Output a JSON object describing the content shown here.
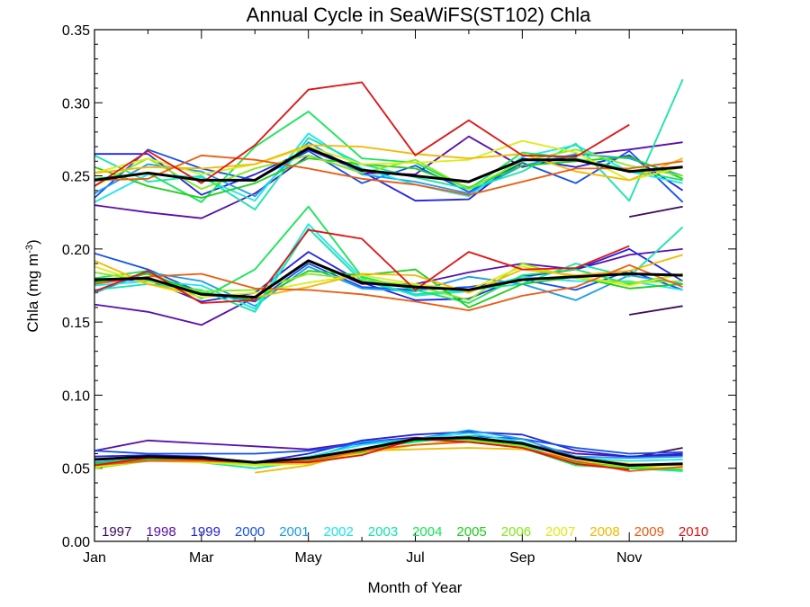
{
  "chart_data": {
    "type": "line",
    "title": "Annual Cycle in SeaWiFS(ST102) Chla",
    "xlabel": "Month of Year",
    "ylabel": {
      "main": "Chla (mg m",
      "sup": "-3",
      "end": ")"
    },
    "xlim": [
      1,
      13
    ],
    "ylim": [
      0,
      0.35
    ],
    "xticks": [
      {
        "v": 1,
        "label": "Jan"
      },
      {
        "v": 3,
        "label": "Mar"
      },
      {
        "v": 5,
        "label": "May"
      },
      {
        "v": 7,
        "label": "Jul"
      },
      {
        "v": 9,
        "label": "Sep"
      },
      {
        "v": 11,
        "label": "Nov"
      }
    ],
    "yticks": [
      {
        "v": 0.0,
        "label": "0.00"
      },
      {
        "v": 0.05,
        "label": "0.05"
      },
      {
        "v": 0.1,
        "label": "0.10"
      },
      {
        "v": 0.15,
        "label": "0.15"
      },
      {
        "v": 0.2,
        "label": "0.20"
      },
      {
        "v": 0.25,
        "label": "0.25"
      },
      {
        "v": 0.3,
        "label": "0.30"
      },
      {
        "v": 0.35,
        "label": "0.35"
      }
    ],
    "legend_placement": "bottom",
    "series": [
      {
        "name": "1997",
        "color": "#3d0a5c",
        "high": [
          null,
          null,
          null,
          null,
          null,
          null,
          null,
          null,
          null,
          null,
          0.222,
          0.229
        ],
        "mid": [
          null,
          null,
          null,
          null,
          null,
          null,
          null,
          null,
          null,
          null,
          0.155,
          0.161
        ],
        "low": [
          null,
          null,
          null,
          null,
          null,
          null,
          null,
          null,
          null,
          null,
          0.057,
          0.064
        ]
      },
      {
        "name": "1998",
        "color": "#5a0eb0",
        "high": [
          0.23,
          0.225,
          0.221,
          0.238,
          0.264,
          0.252,
          0.251,
          0.277,
          0.256,
          0.264,
          0.268,
          0.273
        ],
        "mid": [
          0.162,
          0.157,
          0.148,
          0.167,
          0.192,
          0.176,
          0.176,
          0.184,
          0.19,
          0.186,
          0.196,
          0.2
        ],
        "low": [
          0.062,
          0.069,
          0.067,
          0.065,
          0.063,
          0.068,
          0.071,
          0.07,
          0.067,
          0.06,
          0.058,
          0.06
        ]
      },
      {
        "name": "1999",
        "color": "#2222e8",
        "high": [
          0.265,
          0.265,
          0.237,
          0.251,
          0.268,
          0.253,
          0.233,
          0.234,
          0.262,
          0.256,
          0.264,
          0.24
        ],
        "mid": [
          0.178,
          0.179,
          0.164,
          0.17,
          0.198,
          0.177,
          0.165,
          0.166,
          0.181,
          0.186,
          0.2,
          0.178
        ],
        "low": [
          0.058,
          0.059,
          0.058,
          0.054,
          0.06,
          0.069,
          0.073,
          0.075,
          0.073,
          0.062,
          0.058,
          0.059
        ]
      },
      {
        "name": "2000",
        "color": "#1250f0",
        "high": [
          0.235,
          0.268,
          0.255,
          0.247,
          0.267,
          0.245,
          0.257,
          0.239,
          0.259,
          0.245,
          0.267,
          0.232
        ],
        "mid": [
          0.197,
          0.186,
          0.17,
          0.164,
          0.19,
          0.174,
          0.172,
          0.174,
          0.179,
          0.172,
          0.185,
          0.172
        ],
        "low": [
          0.062,
          0.06,
          0.06,
          0.06,
          0.062,
          0.067,
          0.069,
          0.072,
          0.07,
          0.064,
          0.06,
          0.061
        ]
      },
      {
        "name": "2001",
        "color": "#1a9cf0",
        "high": [
          0.238,
          0.258,
          0.253,
          0.236,
          0.273,
          0.251,
          0.246,
          0.238,
          0.257,
          0.265,
          0.262,
          0.25
        ],
        "mid": [
          0.17,
          0.184,
          0.178,
          0.161,
          0.188,
          0.173,
          0.171,
          0.181,
          0.176,
          0.165,
          0.182,
          0.176
        ],
        "low": [
          0.054,
          0.057,
          0.055,
          0.054,
          0.057,
          0.068,
          0.07,
          0.076,
          0.07,
          0.058,
          0.057,
          0.058
        ]
      },
      {
        "name": "2002",
        "color": "#18e8f0",
        "high": [
          0.232,
          0.251,
          0.249,
          0.233,
          0.279,
          0.255,
          0.244,
          0.236,
          0.263,
          0.271,
          0.253,
          0.245
        ],
        "mid": [
          0.175,
          0.178,
          0.175,
          0.159,
          0.217,
          0.18,
          0.168,
          0.171,
          0.181,
          0.178,
          0.178,
          0.172
        ],
        "low": [
          0.053,
          0.058,
          0.056,
          0.052,
          0.058,
          0.066,
          0.07,
          0.074,
          0.068,
          0.057,
          0.055,
          0.056
        ]
      },
      {
        "name": "2003",
        "color": "#12e8a8",
        "high": [
          0.264,
          0.246,
          0.25,
          0.227,
          0.276,
          0.258,
          0.249,
          0.241,
          0.253,
          0.272,
          0.233,
          0.316
        ],
        "mid": [
          0.172,
          0.176,
          0.172,
          0.157,
          0.214,
          0.178,
          0.169,
          0.172,
          0.176,
          0.19,
          0.181,
          0.215
        ],
        "low": [
          0.051,
          0.056,
          0.054,
          0.05,
          0.055,
          0.063,
          0.068,
          0.072,
          0.066,
          0.053,
          0.05,
          0.048
        ]
      },
      {
        "name": "2004",
        "color": "#14e854",
        "high": [
          0.248,
          0.252,
          0.232,
          0.27,
          0.294,
          0.262,
          0.259,
          0.241,
          0.266,
          0.262,
          0.254,
          0.247
        ],
        "mid": [
          0.18,
          0.185,
          0.166,
          0.186,
          0.229,
          0.181,
          0.172,
          0.163,
          0.182,
          0.186,
          0.176,
          0.183
        ],
        "low": [
          0.052,
          0.056,
          0.055,
          0.053,
          0.056,
          0.062,
          0.069,
          0.071,
          0.064,
          0.052,
          0.05,
          0.049
        ]
      },
      {
        "name": "2005",
        "color": "#1cd01c",
        "high": [
          0.256,
          0.243,
          0.235,
          0.245,
          0.262,
          0.258,
          0.255,
          0.242,
          0.257,
          0.26,
          0.263,
          0.248
        ],
        "mid": [
          0.177,
          0.183,
          0.17,
          0.165,
          0.185,
          0.182,
          0.186,
          0.16,
          0.176,
          0.181,
          0.173,
          0.176
        ],
        "low": [
          0.053,
          0.057,
          0.056,
          0.054,
          0.055,
          0.061,
          0.069,
          0.07,
          0.065,
          0.054,
          0.051,
          0.05
        ]
      },
      {
        "name": "2006",
        "color": "#84ec18",
        "high": [
          0.243,
          0.262,
          0.241,
          0.255,
          0.264,
          0.252,
          0.261,
          0.241,
          0.26,
          0.268,
          0.257,
          0.25
        ],
        "mid": [
          0.184,
          0.178,
          0.171,
          0.172,
          0.183,
          0.179,
          0.175,
          0.165,
          0.19,
          0.18,
          0.177,
          0.178
        ],
        "low": [
          0.05,
          0.055,
          0.055,
          0.053,
          0.054,
          0.06,
          0.066,
          0.069,
          0.065,
          0.053,
          0.051,
          0.05
        ]
      },
      {
        "name": "2007",
        "color": "#dcec18",
        "high": [
          0.252,
          0.262,
          0.251,
          0.258,
          0.27,
          0.258,
          0.259,
          0.261,
          0.274,
          0.266,
          0.247,
          0.256
        ],
        "mid": [
          0.188,
          0.176,
          0.167,
          0.17,
          0.177,
          0.182,
          0.176,
          0.172,
          0.188,
          0.181,
          0.175,
          0.183
        ],
        "low": [
          0.051,
          0.055,
          0.054,
          0.052,
          0.053,
          0.06,
          0.066,
          0.068,
          0.064,
          0.055,
          0.052,
          0.05
        ]
      },
      {
        "name": "2008",
        "color": "#f8b800",
        "high": [
          0.252,
          0.256,
          0.255,
          0.258,
          0.271,
          0.27,
          0.265,
          0.262,
          0.265,
          0.253,
          0.247,
          0.262
        ],
        "mid": [
          0.192,
          0.176,
          0.169,
          0.167,
          0.174,
          0.183,
          0.182,
          0.17,
          0.186,
          0.182,
          0.185,
          0.196
        ],
        "low": [
          null,
          null,
          null,
          0.047,
          0.052,
          0.062,
          0.063,
          0.064,
          0.063,
          0.057,
          0.053,
          0.052
        ]
      },
      {
        "name": "2009",
        "color": "#f05a10",
        "high": [
          0.247,
          0.248,
          0.264,
          0.261,
          0.255,
          0.248,
          0.244,
          0.237,
          0.246,
          0.255,
          0.255,
          0.26
        ],
        "mid": [
          0.176,
          0.181,
          0.183,
          0.173,
          0.172,
          0.169,
          0.164,
          0.158,
          0.168,
          0.174,
          0.189,
          0.174
        ],
        "low": [
          0.052,
          0.055,
          0.055,
          0.054,
          0.055,
          0.062,
          0.066,
          0.068,
          0.064,
          0.055,
          0.048,
          0.051
        ]
      },
      {
        "name": "2010",
        "color": "#e81010",
        "high": [
          0.243,
          0.267,
          0.245,
          0.271,
          0.309,
          0.314,
          0.264,
          0.288,
          0.264,
          0.263,
          0.285,
          null
        ],
        "mid": [
          0.171,
          0.185,
          0.163,
          0.165,
          0.213,
          0.207,
          0.172,
          0.198,
          0.186,
          0.187,
          0.202,
          null
        ],
        "low": [
          0.052,
          0.057,
          0.056,
          0.054,
          0.054,
          0.059,
          0.07,
          0.068,
          0.064,
          0.053,
          0.049,
          null
        ]
      }
    ],
    "mean": {
      "color": "#000000",
      "high": [
        0.247,
        0.252,
        0.247,
        0.247,
        0.269,
        0.254,
        0.25,
        0.246,
        0.261,
        0.261,
        0.253,
        0.256
      ],
      "mid": [
        0.179,
        0.18,
        0.169,
        0.167,
        0.192,
        0.177,
        0.174,
        0.172,
        0.179,
        0.181,
        0.183,
        0.182
      ],
      "low": [
        0.056,
        0.058,
        0.057,
        0.054,
        0.057,
        0.063,
        0.07,
        0.071,
        0.067,
        0.057,
        0.052,
        0.053
      ]
    }
  }
}
